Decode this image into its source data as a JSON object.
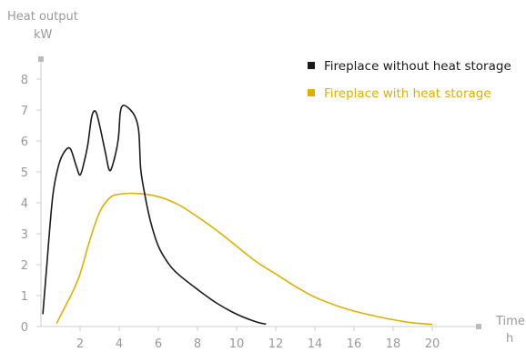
{
  "chart_data": {
    "type": "line",
    "ylabel_line1": "Heat output",
    "ylabel_line2": "kW",
    "xlabel_line1": "Time",
    "xlabel_line2": "h",
    "xlim": [
      0,
      22
    ],
    "ylim": [
      0,
      8.7
    ],
    "x_ticks": [
      "2",
      "4",
      "6",
      "8",
      "10",
      "12",
      "14",
      "16",
      "18",
      "20"
    ],
    "y_ticks": [
      "0",
      "1",
      "2",
      "3",
      "4",
      "5",
      "6",
      "7",
      "8"
    ],
    "legend_position": "top-right",
    "series": [
      {
        "name": "Fireplace without heat storage",
        "color": "#1a1a1a",
        "points": [
          [
            0.1,
            0.4
          ],
          [
            0.3,
            2.0
          ],
          [
            0.6,
            4.2
          ],
          [
            0.9,
            5.2
          ],
          [
            1.2,
            5.65
          ],
          [
            1.5,
            5.75
          ],
          [
            1.8,
            5.2
          ],
          [
            2.0,
            4.9
          ],
          [
            2.2,
            5.3
          ],
          [
            2.4,
            5.9
          ],
          [
            2.6,
            6.8
          ],
          [
            2.8,
            6.95
          ],
          [
            3.0,
            6.5
          ],
          [
            3.3,
            5.6
          ],
          [
            3.5,
            5.05
          ],
          [
            3.7,
            5.3
          ],
          [
            3.95,
            6.05
          ],
          [
            4.05,
            6.9
          ],
          [
            4.2,
            7.15
          ],
          [
            4.5,
            7.05
          ],
          [
            4.8,
            6.8
          ],
          [
            5.0,
            6.3
          ],
          [
            5.1,
            5.1
          ],
          [
            5.3,
            4.3
          ],
          [
            5.6,
            3.4
          ],
          [
            6.0,
            2.6
          ],
          [
            6.5,
            2.05
          ],
          [
            7.0,
            1.7
          ],
          [
            8.0,
            1.2
          ],
          [
            9.0,
            0.75
          ],
          [
            10.0,
            0.4
          ],
          [
            11.0,
            0.15
          ],
          [
            11.5,
            0.08
          ]
        ]
      },
      {
        "name": "Fireplace with heat storage",
        "color": "#e0b000",
        "points": [
          [
            0.8,
            0.1
          ],
          [
            1.2,
            0.6
          ],
          [
            1.6,
            1.1
          ],
          [
            2.0,
            1.7
          ],
          [
            2.5,
            2.8
          ],
          [
            3.0,
            3.7
          ],
          [
            3.5,
            4.15
          ],
          [
            4.0,
            4.28
          ],
          [
            5.0,
            4.3
          ],
          [
            6.0,
            4.2
          ],
          [
            7.0,
            3.95
          ],
          [
            8.0,
            3.55
          ],
          [
            9.0,
            3.1
          ],
          [
            10.0,
            2.6
          ],
          [
            11.0,
            2.1
          ],
          [
            12.0,
            1.7
          ],
          [
            13.0,
            1.3
          ],
          [
            14.0,
            0.95
          ],
          [
            15.0,
            0.7
          ],
          [
            16.0,
            0.5
          ],
          [
            17.0,
            0.35
          ],
          [
            18.0,
            0.22
          ],
          [
            19.0,
            0.12
          ],
          [
            20.0,
            0.07
          ]
        ]
      }
    ]
  }
}
